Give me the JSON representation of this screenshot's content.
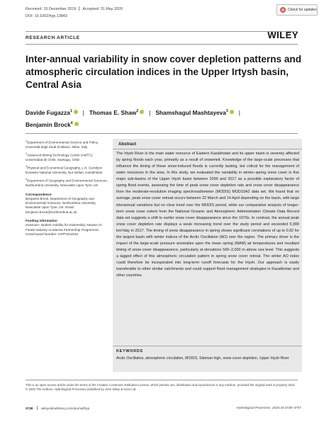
{
  "header": {
    "received": "Received: 15 December 2019",
    "accepted": "Accepted: 31 May 2020",
    "doi": "DOI: 10.1002/hyp.13843",
    "check_updates": "Check for updates"
  },
  "article_type": "RESEARCH ARTICLE",
  "publisher": "WILEY",
  "title": "Inter-annual variability in snow cover depletion patterns and atmospheric circulation indices in the Upper Irtysh basin, Central Asia",
  "authors": [
    {
      "name": "Davide Fugazza",
      "sup": "1"
    },
    {
      "name": "Thomas E. Shaw",
      "sup": "2"
    },
    {
      "name": "Shamshagul Mashtayeva",
      "sup": "3"
    },
    {
      "name": "Benjamin Brock",
      "sup": "4"
    }
  ],
  "affiliations": [
    {
      "sup": "1",
      "text": "Department of Environmental Science and Policy, Università degli Studi di Milano, Milan, Italy"
    },
    {
      "sup": "2",
      "text": "Advanced Mining Technology Center (AMTC), Universidad de Chile, Santiago, Chile"
    },
    {
      "sup": "3",
      "text": "Physical and Economical Geography, L.N. Gumilyov Eurasian National University, Nur-Sultan, Kazakhstan"
    },
    {
      "sup": "4",
      "text": "Department of Geography and Environmental Sciences, Northumbria University, Newcastle Upon Tyne, UK"
    }
  ],
  "correspondence": {
    "heading": "Correspondence",
    "text": "Benjamin Brock, Department of Geography and Environmental Sciences, Northumbria University, Newcastle Upon Tyne, UK. Email: benjamin.brock@northumbria.ac.uk"
  },
  "funding": {
    "heading": "Funding information",
    "text": "erasmus+ student mobility for traineeship; Newton Al-Farabi Industry-Academia Partnership Programme, Grant/Award Number: IAPP\\1516\\42"
  },
  "abstract": {
    "heading": "Abstract",
    "text": "The Irtysh River is the main water resource of Eastern Kazakhstan and its upper basin is severely affected by spring floods each year, primarily as a result of snowmelt. Knowledge of the large-scale processes that influence the timing of these snow-induced floods is currently lacking, but critical for the management of water resources in the area. In this study, we evaluated the variability in winter–spring snow cover in five major sub-basins of the Upper Irtysh basin between 2000 and 2017 as a possible explanatory factor of spring flood events, assessing the time of peak snow cover depletion rate and snow cover disappearance from the moderate-resolution imaging spectroradiometer (MODIS) MOD10A2 data set. We found that on average, peak snow cover retreat occurs between 22 March and 14 April depending on the basin, with large interannual variations but no clear trend over the MODIS period, while our comparative analysis of longer-term snow cover extent from the National Oceanic and Atmospheric Administration Climate Data Record data set suggests a shift to earlier snow cover disappearance since the 1970s. In contrast, the annual peak snow cover depletion rate displays a weak increasing trend over the study period and exceeded 5,900 km²/day in 2017. The timing of snow disappearance in spring shows significant correlations of up to 0.82 for the largest basin with winter indices of the Arctic Oscillation (AO) over the region. The primary driver is the impact of the large-scale pressure anomalies upon the mean spring (MAM) air temperatures and resultant timing of snow cover disappearance, particularly at elevations 500–2,000 m above sea level. This suggests a lagged effect of this atmospheric circulation pattern in spring snow cover retreat. The winter AO index could therefore be incorporated into long-term runoff forecasts for the Irtysh. Our approach is easily transferable to other similar catchments and could support flood management strategies in Kazakhstan and other countries."
  },
  "keywords": {
    "heading": "KEYWORDS",
    "text": "Arctic Oscillation, atmospheric circulation, MODIS, Siberian high, snow cover depletion, Upper Irtysh River"
  },
  "license": "This is an open access article under the terms of the Creative Commons Attribution License, which permits use, distribution and reproduction in any medium, provided the original work is properly cited.\n© 2020 The Authors. Hydrological Processes published by John Wiley & Sons Ltd.",
  "footer": {
    "page": "3738",
    "url": "wileyonlinelibrary.com/journal/hyp",
    "citation": "Hydrological Processes. 2020;34:3738–3757."
  }
}
